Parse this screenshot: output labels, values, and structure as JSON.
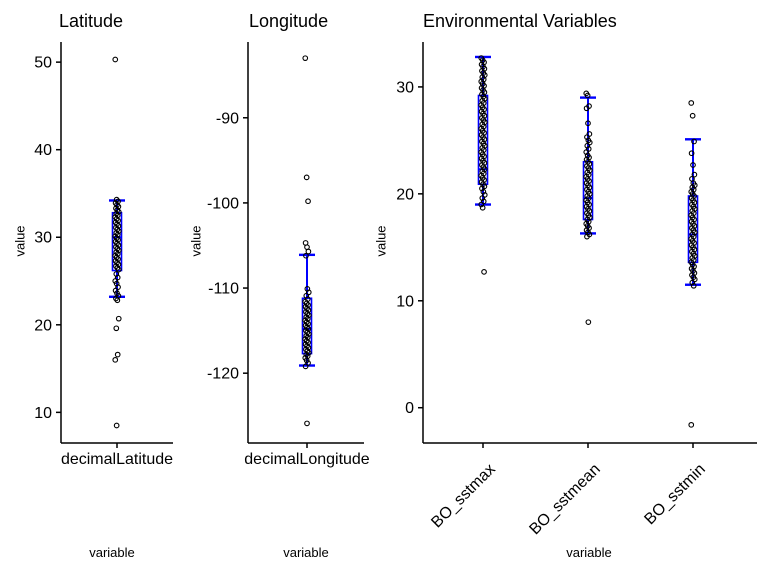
{
  "figure": {
    "background_color": "#ffffff",
    "box_color": "#0000ff",
    "point_color": "#000000",
    "axis_color": "#000000"
  },
  "chart_data": [
    {
      "type": "scatter",
      "subtype": "jittered-points-with-blue-boxplot",
      "title": "Latitude",
      "xlabel": "variable",
      "ylabel": "value",
      "ylim": [
        6.5,
        52.3
      ],
      "yticks": [
        10,
        20,
        30,
        40,
        50
      ],
      "grid": false,
      "legend": "none",
      "x_tick_rotation": 0,
      "categories": [
        "decimalLatitude"
      ],
      "series": [
        {
          "name": "decimalLatitude",
          "boxplot": {
            "lower_whisker": 23.2,
            "q1": 26.2,
            "median": 30.0,
            "q3": 32.8,
            "upper_whisker": 34.2
          },
          "points": [
            50.3,
            34.3,
            34.1,
            33.9,
            33.7,
            33.5,
            33.3,
            33.1,
            32.9,
            32.7,
            32.5,
            32.3,
            32.1,
            31.9,
            31.7,
            31.5,
            31.3,
            31.1,
            30.9,
            30.7,
            30.5,
            30.3,
            30.1,
            29.9,
            29.7,
            29.5,
            29.3,
            29.1,
            28.9,
            28.7,
            28.5,
            28.3,
            28.1,
            27.9,
            27.7,
            27.5,
            27.3,
            27.1,
            26.9,
            26.7,
            26.5,
            26.3,
            25.8,
            25.4,
            25.0,
            24.7,
            24.3,
            23.9,
            23.6,
            23.3,
            23.0,
            22.8,
            20.7,
            19.6,
            16.6,
            16.0,
            8.5
          ]
        }
      ]
    },
    {
      "type": "scatter",
      "subtype": "jittered-points-with-blue-boxplot",
      "title": "Longitude",
      "xlabel": "variable",
      "ylabel": "value",
      "ylim": [
        -128.2,
        -81.1
      ],
      "yticks": [
        -120,
        -110,
        -100,
        -90
      ],
      "grid": false,
      "legend": "none",
      "x_tick_rotation": 0,
      "categories": [
        "decimalLongitude"
      ],
      "series": [
        {
          "name": "decimalLongitude",
          "boxplot": {
            "lower_whisker": -119.1,
            "q1": -117.7,
            "median": -114.8,
            "q3": -111.2,
            "upper_whisker": -106.1
          },
          "points": [
            -83.0,
            -97.0,
            -99.8,
            -104.7,
            -105.2,
            -105.7,
            -106.2,
            -110.1,
            -110.5,
            -110.9,
            -111.3,
            -111.6,
            -111.8,
            -112.0,
            -112.2,
            -112.4,
            -112.6,
            -112.8,
            -113.0,
            -113.2,
            -113.4,
            -113.6,
            -113.8,
            -114.0,
            -114.2,
            -114.4,
            -114.6,
            -114.8,
            -115.0,
            -115.2,
            -115.4,
            -115.6,
            -115.8,
            -116.0,
            -116.2,
            -116.4,
            -116.6,
            -116.8,
            -117.0,
            -117.2,
            -117.4,
            -117.6,
            -117.8,
            -118.0,
            -118.2,
            -118.5,
            -118.8,
            -119.2,
            -125.9
          ]
        }
      ]
    },
    {
      "type": "scatter",
      "subtype": "jittered-points-with-blue-boxplot",
      "title": "Environmental Variables",
      "xlabel": "variable",
      "ylabel": "value",
      "ylim": [
        -3.3,
        34.2
      ],
      "yticks": [
        0,
        10,
        20,
        30
      ],
      "grid": false,
      "legend": "none",
      "x_tick_rotation": 45,
      "categories": [
        "BO_sstmax",
        "BO_sstmean",
        "BO_sstmin"
      ],
      "series": [
        {
          "name": "BO_sstmax",
          "boxplot": {
            "lower_whisker": 19.0,
            "q1": 20.9,
            "median": 22.3,
            "q3": 29.2,
            "upper_whisker": 32.8
          },
          "points": [
            32.7,
            32.5,
            32.3,
            32.1,
            31.9,
            31.7,
            31.5,
            31.3,
            31.1,
            30.9,
            30.7,
            30.5,
            30.3,
            30.1,
            29.9,
            29.7,
            29.5,
            29.3,
            29.1,
            28.9,
            28.7,
            28.5,
            28.3,
            28.1,
            27.9,
            27.7,
            27.5,
            27.3,
            27.1,
            26.9,
            26.7,
            26.5,
            26.3,
            26.1,
            25.9,
            25.7,
            25.5,
            25.3,
            25.1,
            24.9,
            24.7,
            24.5,
            24.3,
            24.1,
            23.9,
            23.7,
            23.5,
            23.3,
            23.1,
            22.9,
            22.7,
            22.5,
            22.3,
            22.1,
            21.9,
            21.7,
            21.5,
            21.3,
            21.1,
            20.9,
            20.7,
            20.5,
            20.2,
            19.9,
            19.6,
            19.3,
            19.0,
            18.7,
            12.7
          ]
        },
        {
          "name": "BO_sstmean",
          "boxplot": {
            "lower_whisker": 16.3,
            "q1": 17.6,
            "median": 19.6,
            "q3": 23.0,
            "upper_whisker": 29.0
          },
          "points": [
            29.4,
            29.2,
            28.2,
            28.0,
            26.6,
            25.6,
            25.3,
            25.0,
            24.8,
            24.5,
            24.2,
            23.9,
            23.6,
            23.4,
            23.2,
            23.0,
            22.8,
            22.6,
            22.4,
            22.2,
            22.0,
            21.8,
            21.6,
            21.4,
            21.2,
            21.0,
            20.8,
            20.6,
            20.4,
            20.2,
            20.0,
            19.8,
            19.6,
            19.4,
            19.2,
            19.0,
            18.8,
            18.6,
            18.4,
            18.2,
            18.0,
            17.8,
            17.6,
            17.4,
            17.2,
            17.0,
            16.8,
            16.6,
            16.4,
            16.2,
            16.0,
            8.0
          ]
        },
        {
          "name": "BO_sstmin",
          "boxplot": {
            "lower_whisker": 11.5,
            "q1": 13.6,
            "median": 16.2,
            "q3": 19.8,
            "upper_whisker": 25.1
          },
          "points": [
            28.5,
            27.3,
            24.9,
            23.8,
            22.7,
            21.8,
            21.4,
            21.0,
            20.8,
            20.6,
            20.4,
            20.2,
            20.0,
            19.8,
            19.6,
            19.4,
            19.2,
            19.0,
            18.8,
            18.6,
            18.4,
            18.2,
            18.0,
            17.8,
            17.6,
            17.4,
            17.2,
            17.0,
            16.8,
            16.6,
            16.4,
            16.2,
            16.0,
            15.8,
            15.6,
            15.4,
            15.2,
            15.0,
            14.8,
            14.6,
            14.4,
            14.2,
            14.0,
            13.8,
            13.6,
            13.4,
            13.2,
            13.0,
            12.8,
            12.6,
            12.4,
            12.2,
            12.0,
            11.7,
            11.4,
            -1.6
          ]
        }
      ]
    }
  ]
}
